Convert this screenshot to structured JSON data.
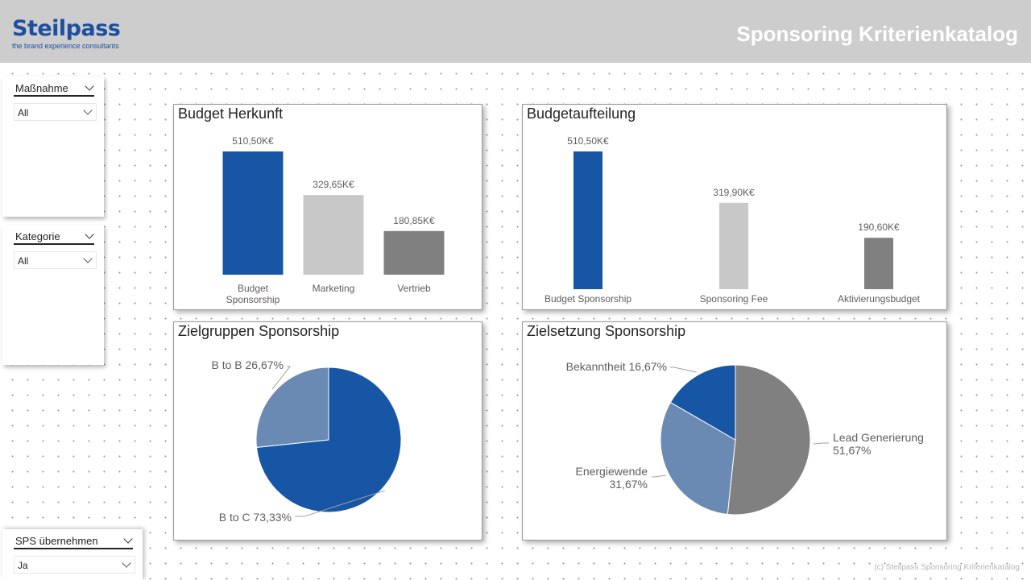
{
  "header": {
    "logo_text": "Steilpass",
    "logo_tagline": "the brand experience consultants",
    "title": "Sponsoring Kriterienkatalog"
  },
  "slicers": {
    "massnahme": {
      "title": "Maßnahme",
      "value": "All"
    },
    "kategorie": {
      "title": "Kategorie",
      "value": "All"
    },
    "sps": {
      "title": "SPS übernehmen",
      "value": "Ja"
    }
  },
  "colors": {
    "primary": "#1755a5",
    "light": "#c8c8c8",
    "dark": "#808080",
    "mid": "#6a8ab3"
  },
  "chart_data": [
    {
      "id": "budget_herkunft",
      "type": "bar",
      "title": "Budget Herkunft",
      "categories": [
        "Budget Sponsorship",
        "Marketing",
        "Vertrieb"
      ],
      "category_lines": [
        [
          "Budget",
          "Sponsorship"
        ],
        [
          "Marketing"
        ],
        [
          "Vertrieb"
        ]
      ],
      "values": [
        510.5,
        329.65,
        180.85
      ],
      "data_labels": [
        "510,50K€",
        "329,65K€",
        "180,85K€"
      ],
      "colors": [
        "#1755a5",
        "#c8c8c8",
        "#808080"
      ],
      "ylim": [
        0,
        510.5
      ]
    },
    {
      "id": "budgetaufteilung",
      "type": "bar",
      "title": "Budgetaufteilung",
      "categories": [
        "Budget Sponsorship",
        "Sponsoring Fee",
        "Aktivierungsbudget"
      ],
      "category_lines": [
        [
          "Budget Sponsorship"
        ],
        [
          "Sponsoring Fee"
        ],
        [
          "Aktivierungsbudget"
        ]
      ],
      "values": [
        510.5,
        319.9,
        190.6
      ],
      "data_labels": [
        "510,50K€",
        "319,90K€",
        "190,60K€"
      ],
      "colors": [
        "#1755a5",
        "#c8c8c8",
        "#808080"
      ],
      "ylim": [
        0,
        510.5
      ]
    },
    {
      "id": "zielgruppen",
      "type": "pie",
      "title": "Zielgruppen Sponsorship",
      "slices": [
        {
          "label": "B to C",
          "value": 73.33,
          "pct": "73,33%",
          "color": "#1755a5"
        },
        {
          "label": "B to B",
          "value": 26.67,
          "pct": "26,67%",
          "color": "#6a8ab3"
        }
      ]
    },
    {
      "id": "zielsetzung",
      "type": "pie",
      "title": "Zielsetzung Sponsorship",
      "slices": [
        {
          "label": "Lead Generierung",
          "value": 51.67,
          "pct": "51,67%",
          "color": "#808080"
        },
        {
          "label": "Energiewende",
          "value": 31.67,
          "pct": "31,67%",
          "color": "#6a8ab3"
        },
        {
          "label": "Bekanntheit",
          "value": 16.67,
          "pct": "16,67%",
          "color": "#1755a5"
        }
      ]
    }
  ],
  "footer": {
    "note": "(c) Steilpass Sponsoring Kriterienkatalog"
  }
}
